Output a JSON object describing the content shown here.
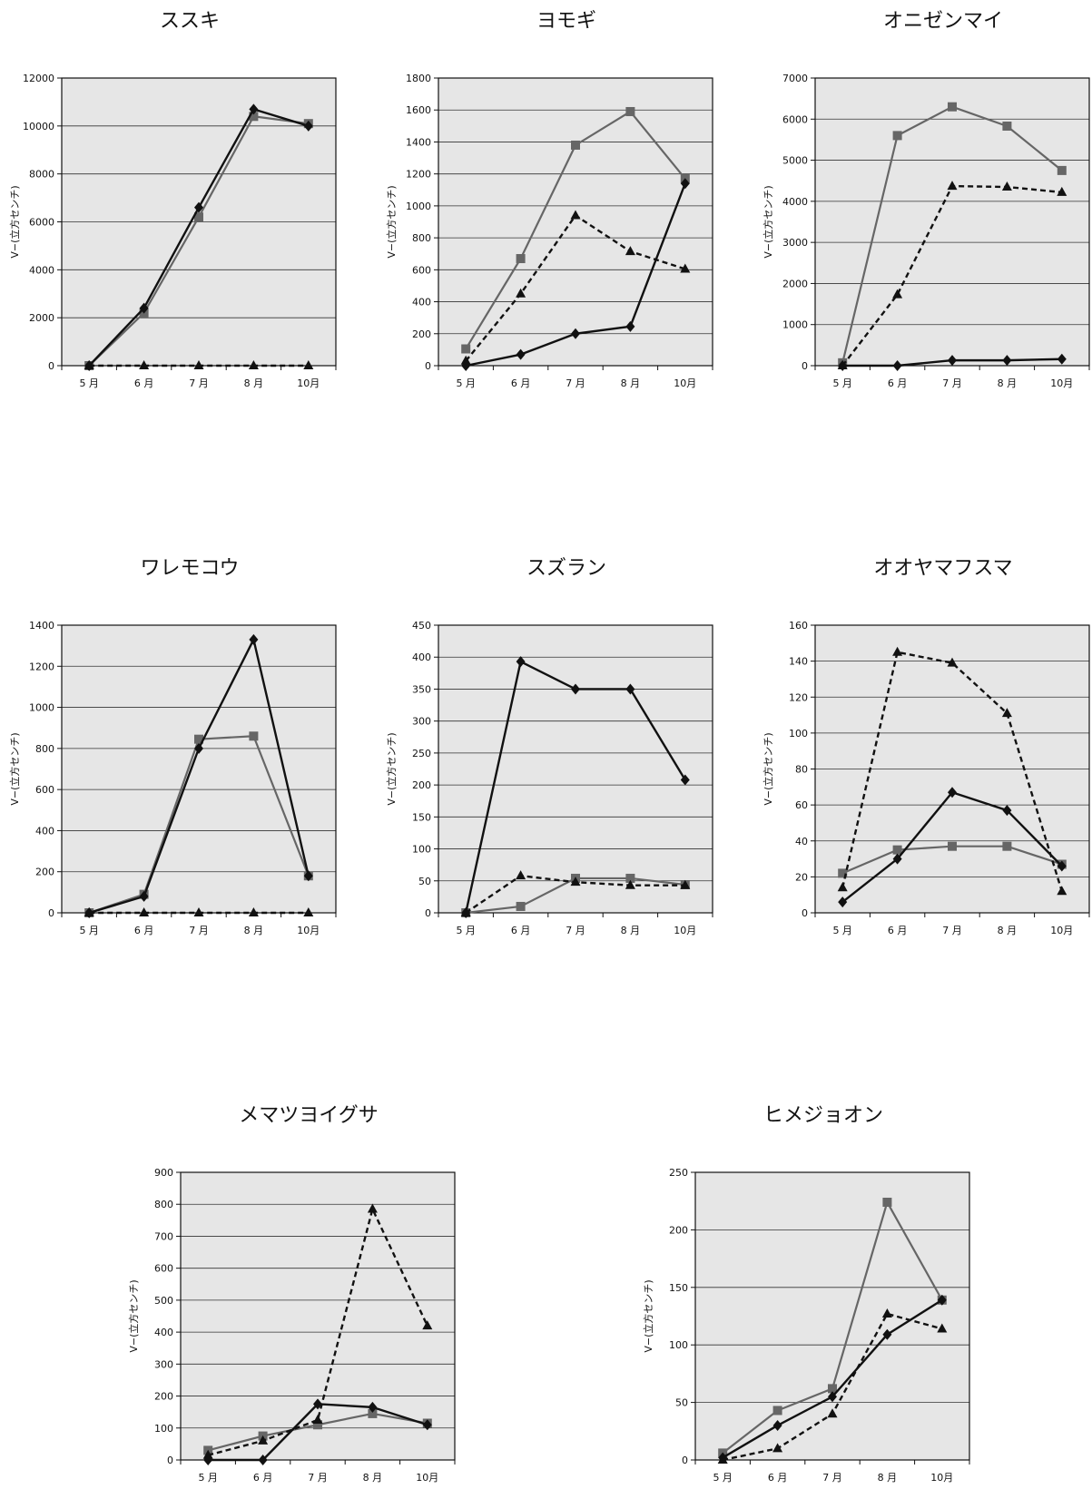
{
  "figure": {
    "colors": {
      "background": "#ffffff",
      "plot_bg": "#e6e6e6",
      "grid": "#333333",
      "frame": "#111111",
      "diamond_series": "#111111",
      "square_series": "#666666",
      "triangle_series": "#111111"
    }
  },
  "chart_data": [
    {
      "type": "line",
      "title": "ススキ",
      "ylabel": "V−(立方センチ)",
      "categories": [
        "5 月",
        "6 月",
        "7 月",
        "8 月",
        "10月"
      ],
      "ylim": [
        0,
        12000
      ],
      "yticks": [
        0,
        2000,
        4000,
        6000,
        8000,
        10000,
        12000
      ],
      "grid": true,
      "series": [
        {
          "marker": "diamond",
          "line": "solid",
          "color": "#111111",
          "values": [
            0,
            2400,
            6600,
            10700,
            10000
          ]
        },
        {
          "marker": "square",
          "line": "solid",
          "color": "#666666",
          "values": [
            0,
            2200,
            6200,
            10400,
            10100
          ]
        },
        {
          "marker": "triangle",
          "line": "dashed",
          "color": "#111111",
          "values": [
            0,
            0,
            0,
            0,
            0
          ]
        }
      ]
    },
    {
      "type": "line",
      "title": "ヨモギ",
      "ylabel": "V−(立方センチ)",
      "categories": [
        "5 月",
        "6 月",
        "7 月",
        "8 月",
        "10月"
      ],
      "ylim": [
        0,
        1800
      ],
      "yticks": [
        0,
        200,
        400,
        600,
        800,
        1000,
        1200,
        1400,
        1600,
        1800
      ],
      "grid": true,
      "series": [
        {
          "marker": "diamond",
          "line": "solid",
          "color": "#111111",
          "values": [
            0,
            70,
            200,
            245,
            1140
          ]
        },
        {
          "marker": "square",
          "line": "solid",
          "color": "#666666",
          "values": [
            105,
            670,
            1380,
            1590,
            1170
          ]
        },
        {
          "marker": "triangle",
          "line": "dashed",
          "color": "#111111",
          "values": [
            30,
            450,
            940,
            715,
            605
          ]
        }
      ]
    },
    {
      "type": "line",
      "title": "オニゼンマイ",
      "ylabel": "V−(立方センチ)",
      "categories": [
        "5 月",
        "6 月",
        "7 月",
        "8 月",
        "10月"
      ],
      "ylim": [
        0,
        7000
      ],
      "yticks": [
        0,
        1000,
        2000,
        3000,
        4000,
        5000,
        6000,
        7000
      ],
      "grid": true,
      "series": [
        {
          "marker": "diamond",
          "line": "solid",
          "color": "#111111",
          "values": [
            0,
            0,
            130,
            130,
            160
          ]
        },
        {
          "marker": "square",
          "line": "solid",
          "color": "#666666",
          "values": [
            70,
            5600,
            6300,
            5830,
            4750
          ]
        },
        {
          "marker": "triangle",
          "line": "dashed",
          "color": "#111111",
          "values": [
            0,
            1730,
            4370,
            4350,
            4220
          ]
        }
      ]
    },
    {
      "type": "line",
      "title": "ワレモコウ",
      "ylabel": "V−(立方センチ)",
      "categories": [
        "5 月",
        "6 月",
        "7 月",
        "8 月",
        "10月"
      ],
      "ylim": [
        0,
        1400
      ],
      "yticks": [
        0,
        200,
        400,
        600,
        800,
        1000,
        1200,
        1400
      ],
      "grid": true,
      "series": [
        {
          "marker": "diamond",
          "line": "solid",
          "color": "#111111",
          "values": [
            0,
            80,
            800,
            1330,
            180
          ]
        },
        {
          "marker": "square",
          "line": "solid",
          "color": "#666666",
          "values": [
            0,
            90,
            845,
            860,
            180
          ]
        },
        {
          "marker": "triangle",
          "line": "dashed",
          "color": "#111111",
          "values": [
            0,
            0,
            0,
            0,
            0
          ]
        }
      ]
    },
    {
      "type": "line",
      "title": "スズラン",
      "ylabel": "V−(立方センチ)",
      "categories": [
        "5 月",
        "6 月",
        "7 月",
        "8 月",
        "10月"
      ],
      "ylim": [
        0,
        450
      ],
      "yticks": [
        0,
        50,
        100,
        150,
        200,
        250,
        300,
        350,
        400,
        450
      ],
      "grid": true,
      "series": [
        {
          "marker": "diamond",
          "line": "solid",
          "color": "#111111",
          "values": [
            0,
            393,
            350,
            350,
            208
          ]
        },
        {
          "marker": "square",
          "line": "solid",
          "color": "#666666",
          "values": [
            0,
            10,
            54,
            54,
            44
          ]
        },
        {
          "marker": "triangle",
          "line": "dashed",
          "color": "#111111",
          "values": [
            0,
            58,
            48,
            43,
            43
          ]
        }
      ]
    },
    {
      "type": "line",
      "title": "オオヤマフスマ",
      "ylabel": "V−(立方センチ)",
      "categories": [
        "5 月",
        "6 月",
        "7 月",
        "8 月",
        "10月"
      ],
      "ylim": [
        0,
        160
      ],
      "yticks": [
        0,
        20,
        40,
        60,
        80,
        100,
        120,
        140,
        160
      ],
      "grid": true,
      "series": [
        {
          "marker": "diamond",
          "line": "solid",
          "color": "#111111",
          "values": [
            6,
            30,
            67,
            57,
            26
          ]
        },
        {
          "marker": "square",
          "line": "solid",
          "color": "#666666",
          "values": [
            22,
            35,
            37,
            37,
            27
          ]
        },
        {
          "marker": "triangle",
          "line": "dashed",
          "color": "#111111",
          "values": [
            14,
            145,
            139,
            111,
            12
          ]
        }
      ]
    },
    {
      "type": "line",
      "title": "メマツヨイグサ",
      "ylabel": "V−(立方センチ)",
      "categories": [
        "5 月",
        "6 月",
        "7 月",
        "8 月",
        "10月"
      ],
      "ylim": [
        0,
        900
      ],
      "yticks": [
        0,
        100,
        200,
        300,
        400,
        500,
        600,
        700,
        800,
        900
      ],
      "grid": true,
      "series": [
        {
          "marker": "diamond",
          "line": "solid",
          "color": "#111111",
          "values": [
            0,
            0,
            175,
            165,
            110
          ]
        },
        {
          "marker": "square",
          "line": "solid",
          "color": "#666666",
          "values": [
            30,
            75,
            110,
            145,
            115
          ]
        },
        {
          "marker": "triangle",
          "line": "dashed",
          "color": "#111111",
          "values": [
            15,
            60,
            125,
            785,
            420
          ]
        }
      ]
    },
    {
      "type": "line",
      "title": "ヒメジョオン",
      "ylabel": "V−(立方センチ)",
      "categories": [
        "5 月",
        "6 月",
        "7 月",
        "8 月",
        "10月"
      ],
      "ylim": [
        0,
        250
      ],
      "yticks": [
        0,
        50,
        100,
        150,
        200,
        250
      ],
      "grid": true,
      "series": [
        {
          "marker": "diamond",
          "line": "solid",
          "color": "#111111",
          "values": [
            2,
            30,
            55,
            109,
            139
          ]
        },
        {
          "marker": "square",
          "line": "solid",
          "color": "#666666",
          "values": [
            6,
            43,
            62,
            224,
            139
          ]
        },
        {
          "marker": "triangle",
          "line": "dashed",
          "color": "#111111",
          "values": [
            0,
            10,
            40,
            127,
            114
          ]
        }
      ]
    }
  ]
}
